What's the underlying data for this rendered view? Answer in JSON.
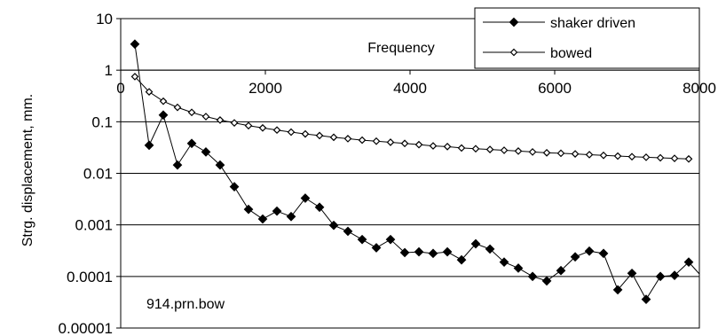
{
  "chart_data": {
    "type": "line",
    "xlabel": "Frequency",
    "ylabel": "Strg. displacement, mm.",
    "annotation": "914.prn.bow",
    "x_axis": {
      "min": 0,
      "max": 8000,
      "ticks": [
        0,
        2000,
        4000,
        6000,
        8000
      ],
      "tick_labels": [
        "0",
        "2000",
        "4000",
        "6000",
        "8000"
      ],
      "crosses_y_at": 1
    },
    "y_axis": {
      "scale": "log",
      "min": 1e-05,
      "max": 10,
      "ticks": [
        10,
        1,
        0.1,
        0.01,
        0.001,
        0.0001,
        1e-05
      ],
      "tick_labels": [
        "10",
        "1",
        "0.1",
        "0.01",
        "0.001",
        "0.0001",
        "0.00001"
      ]
    },
    "grid": {
      "horizontal": true,
      "vertical": false
    },
    "legend_position": "top-right",
    "series": [
      {
        "name": "shaker driven",
        "marker": "filled-diamond",
        "x": [
          196,
          393,
          589,
          785,
          982,
          1178,
          1374,
          1571,
          1767,
          1963,
          2160,
          2356,
          2552,
          2749,
          2945,
          3141,
          3338,
          3534,
          3730,
          3927,
          4123,
          4319,
          4516,
          4712,
          4908,
          5105,
          5301,
          5497,
          5694,
          5890,
          6086,
          6283,
          6479,
          6675,
          6872,
          7068,
          7264,
          7461,
          7657,
          7853,
          8100
        ],
        "y": [
          3.2,
          0.035,
          0.135,
          0.0145,
          0.038,
          0.026,
          0.0145,
          0.0055,
          0.002,
          0.0013,
          0.00185,
          0.00145,
          0.0033,
          0.0022,
          0.00098,
          0.00075,
          0.00052,
          0.00036,
          0.00052,
          0.00029,
          0.0003,
          0.00028,
          0.0003,
          0.00021,
          0.00043,
          0.00034,
          0.00019,
          0.000145,
          0.0001,
          8.2e-05,
          0.00013,
          0.00024,
          0.00031,
          0.00028,
          5.5e-05,
          0.000115,
          3.6e-05,
          0.0001,
          0.000105,
          0.00019,
          7.8e-05
        ]
      },
      {
        "name": "bowed",
        "marker": "open-diamond",
        "x": [
          196,
          393,
          589,
          785,
          982,
          1178,
          1374,
          1571,
          1767,
          1963,
          2160,
          2356,
          2552,
          2749,
          2945,
          3141,
          3338,
          3534,
          3730,
          3927,
          4123,
          4319,
          4516,
          4712,
          4908,
          5105,
          5301,
          5497,
          5694,
          5890,
          6086,
          6283,
          6479,
          6675,
          6872,
          7068,
          7264,
          7461,
          7657,
          7853
        ],
        "y": [
          0.75,
          0.38,
          0.25,
          0.19,
          0.152,
          0.126,
          0.108,
          0.095,
          0.084,
          0.076,
          0.069,
          0.063,
          0.058,
          0.054,
          0.05,
          0.047,
          0.044,
          0.042,
          0.04,
          0.038,
          0.036,
          0.034,
          0.033,
          0.031,
          0.03,
          0.029,
          0.028,
          0.027,
          0.026,
          0.025,
          0.0245,
          0.0238,
          0.023,
          0.0223,
          0.0216,
          0.021,
          0.0205,
          0.02,
          0.0195,
          0.019
        ]
      }
    ]
  }
}
